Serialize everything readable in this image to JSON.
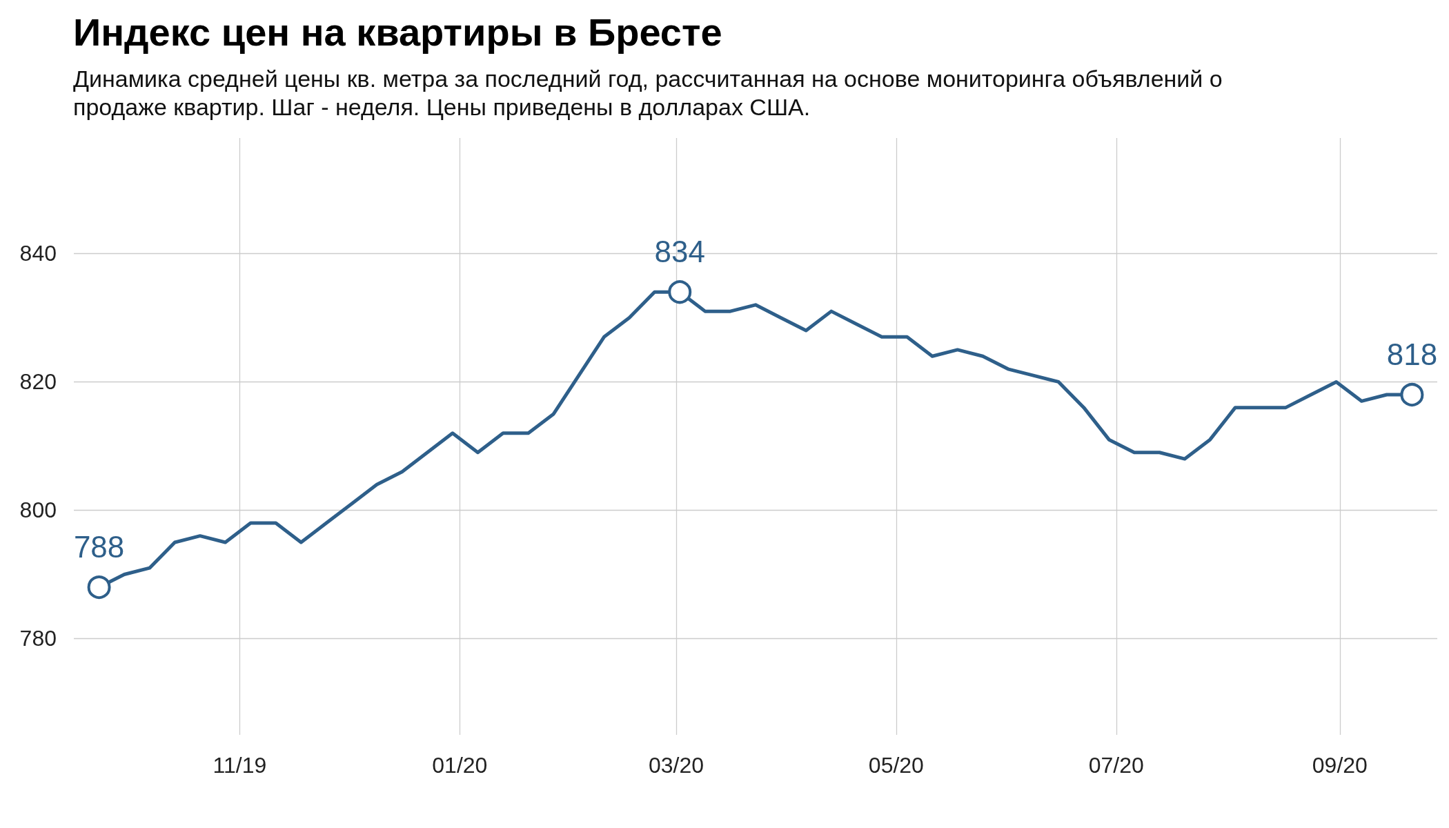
{
  "chart_data": {
    "type": "line",
    "title": "Индекс цен на квартиры в Бресте",
    "subtitle": "Динамика средней цены кв. метра за последний год, рассчитанная на основе мониторинга объявлений о продаже квартир. Шаг - неделя. Цены приведены в долларах США.",
    "x": [
      "2019-09-23",
      "2019-09-30",
      "2019-10-07",
      "2019-10-14",
      "2019-10-21",
      "2019-10-28",
      "2019-11-04",
      "2019-11-11",
      "2019-11-18",
      "2019-11-25",
      "2019-12-02",
      "2019-12-09",
      "2019-12-16",
      "2019-12-23",
      "2019-12-30",
      "2020-01-06",
      "2020-01-13",
      "2020-01-20",
      "2020-01-27",
      "2020-02-03",
      "2020-02-10",
      "2020-02-17",
      "2020-02-24",
      "2020-03-02",
      "2020-03-09",
      "2020-03-16",
      "2020-03-23",
      "2020-03-30",
      "2020-04-06",
      "2020-04-13",
      "2020-04-20",
      "2020-04-27",
      "2020-05-04",
      "2020-05-11",
      "2020-05-18",
      "2020-05-25",
      "2020-06-01",
      "2020-06-08",
      "2020-06-15",
      "2020-06-22",
      "2020-06-29",
      "2020-07-06",
      "2020-07-13",
      "2020-07-20",
      "2020-07-27",
      "2020-08-03",
      "2020-08-10",
      "2020-08-17",
      "2020-08-24",
      "2020-08-31",
      "2020-09-07",
      "2020-09-14",
      "2020-09-21"
    ],
    "series": [
      {
        "color": "#2e5f8a",
        "values": [
          788,
          790,
          791,
          795,
          796,
          795,
          798,
          798,
          795,
          798,
          801,
          804,
          806,
          809,
          812,
          809,
          812,
          812,
          815,
          821,
          827,
          830,
          834,
          834,
          831,
          831,
          832,
          830,
          828,
          831,
          829,
          827,
          827,
          824,
          825,
          824,
          822,
          821,
          820,
          816,
          811,
          809,
          809,
          808,
          811,
          816,
          816,
          816,
          818,
          820,
          817,
          818,
          818
        ],
        "value_labels": [
          "788",
          null,
          null,
          null,
          null,
          null,
          null,
          null,
          null,
          null,
          null,
          null,
          null,
          null,
          null,
          null,
          null,
          null,
          null,
          null,
          null,
          null,
          null,
          "834",
          null,
          null,
          null,
          null,
          null,
          null,
          null,
          null,
          null,
          null,
          null,
          null,
          null,
          null,
          null,
          null,
          null,
          null,
          null,
          null,
          null,
          null,
          null,
          null,
          null,
          null,
          null,
          null,
          "818"
        ]
      }
    ],
    "xlim": [
      "2019-09-16",
      "2020-09-28"
    ],
    "xticks": [
      {
        "value": "2019-11-01",
        "label": "11/19"
      },
      {
        "value": "2020-01-01",
        "label": "01/20"
      },
      {
        "value": "2020-03-01",
        "label": "03/20"
      },
      {
        "value": "2020-05-01",
        "label": "05/20"
      },
      {
        "value": "2020-07-01",
        "label": "07/20"
      },
      {
        "value": "2020-09-01",
        "label": "09/20"
      }
    ],
    "ylim": [
      765,
      858
    ],
    "yticks": [
      780,
      800,
      820,
      840
    ],
    "grid": true,
    "line_style": "solid"
  }
}
